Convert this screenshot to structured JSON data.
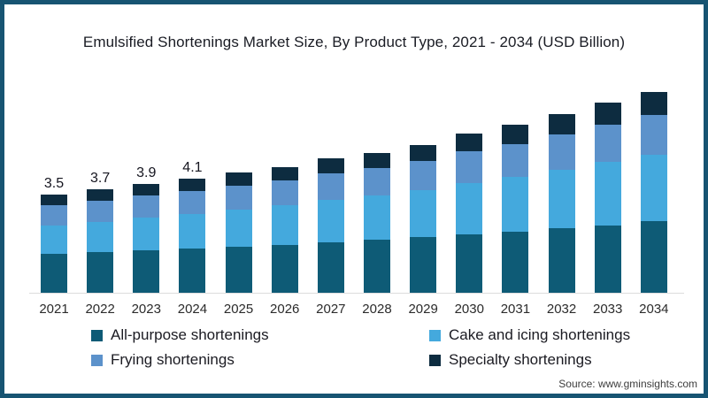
{
  "title": "Emulsified Shortenings Market Size, By Product Type, 2021 - 2034 (USD Billion)",
  "source": "Source: www.gminsights.com",
  "colors": {
    "frame_border": "#175472",
    "all_purpose": "#0E5B76",
    "cake_icing": "#44A9DD",
    "frying": "#5C92CB",
    "specialty": "#0D2C40",
    "axis_line": "#dcdcdc"
  },
  "chart_data": {
    "type": "bar",
    "stacked": true,
    "title": "Emulsified Shortenings Market Size, By Product Type, 2021 - 2034 (USD Billion)",
    "xlabel": "",
    "ylabel": "USD Billion",
    "ylim": [
      0,
      7.5
    ],
    "grid": false,
    "legend_position": "bottom",
    "categories": [
      "2021",
      "2022",
      "2023",
      "2024",
      "2025",
      "2026",
      "2027",
      "2028",
      "2029",
      "2030",
      "2031",
      "2032",
      "2033",
      "2034"
    ],
    "series": [
      {
        "name": "All-purpose shortenings",
        "color": "#0E5B76",
        "values": [
          1.4,
          1.46,
          1.52,
          1.58,
          1.64,
          1.7,
          1.79,
          1.9,
          1.98,
          2.08,
          2.18,
          2.3,
          2.42,
          2.55
        ]
      },
      {
        "name": "Cake and icing shortenings",
        "color": "#44A9DD",
        "values": [
          1.0,
          1.08,
          1.16,
          1.24,
          1.35,
          1.42,
          1.52,
          1.58,
          1.7,
          1.86,
          1.97,
          2.1,
          2.26,
          2.4
        ]
      },
      {
        "name": "Frying shortenings",
        "color": "#5C92CB",
        "values": [
          0.72,
          0.75,
          0.79,
          0.83,
          0.84,
          0.89,
          0.96,
          0.97,
          1.03,
          1.13,
          1.18,
          1.27,
          1.34,
          1.4
        ]
      },
      {
        "name": "Specialty shortenings",
        "color": "#0D2C40",
        "values": [
          0.38,
          0.41,
          0.43,
          0.45,
          0.47,
          0.49,
          0.53,
          0.55,
          0.59,
          0.63,
          0.67,
          0.73,
          0.78,
          0.85
        ]
      }
    ],
    "totals": [
      3.5,
      3.7,
      3.9,
      4.1,
      4.3,
      4.5,
      4.8,
      5.0,
      5.3,
      5.7,
      6.0,
      6.4,
      6.8,
      7.2
    ],
    "bar_labels": [
      "3.5",
      "3.7",
      "3.9",
      "4.1",
      "",
      "",
      "",
      "",
      "",
      "",
      "",
      "",
      "",
      ""
    ]
  },
  "legend": {
    "items": [
      {
        "label": "All-purpose shortenings",
        "color": "#0E5B76"
      },
      {
        "label": "Cake and icing shortenings",
        "color": "#44A9DD"
      },
      {
        "label": "Frying shortenings",
        "color": "#5C92CB"
      },
      {
        "label": "Specialty shortenings",
        "color": "#0D2C40"
      }
    ]
  }
}
